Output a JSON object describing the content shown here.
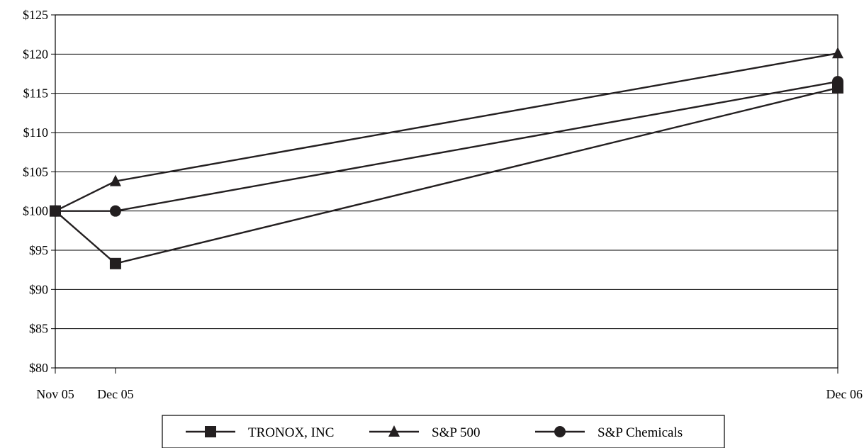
{
  "chart_data": {
    "type": "line",
    "title": "",
    "xlabel": "",
    "ylabel": "",
    "x": [
      "Nov 05",
      "Dec 05",
      "Dec 06"
    ],
    "x_months": [
      0,
      1,
      13
    ],
    "ylim": [
      80,
      125
    ],
    "y_ticks": [
      80,
      85,
      90,
      95,
      100,
      105,
      110,
      115,
      120,
      125
    ],
    "y_tick_labels": [
      "$80",
      "$85",
      "$90",
      "$95",
      "$100",
      "$105",
      "$110",
      "$115",
      "$120",
      "$125"
    ],
    "grid": "horizontal",
    "legend_position": "bottom",
    "series": [
      {
        "name": "TRONOX, INC",
        "marker": "square",
        "values": [
          100,
          93.3,
          115.7
        ]
      },
      {
        "name": "S&P 500",
        "marker": "triangle",
        "values": [
          100,
          103.8,
          120.1
        ]
      },
      {
        "name": "S&P Chemicals",
        "marker": "circle",
        "values": [
          100,
          100,
          116.5
        ]
      }
    ],
    "colors": {
      "line": "#231f20",
      "grid": "#000000"
    }
  }
}
